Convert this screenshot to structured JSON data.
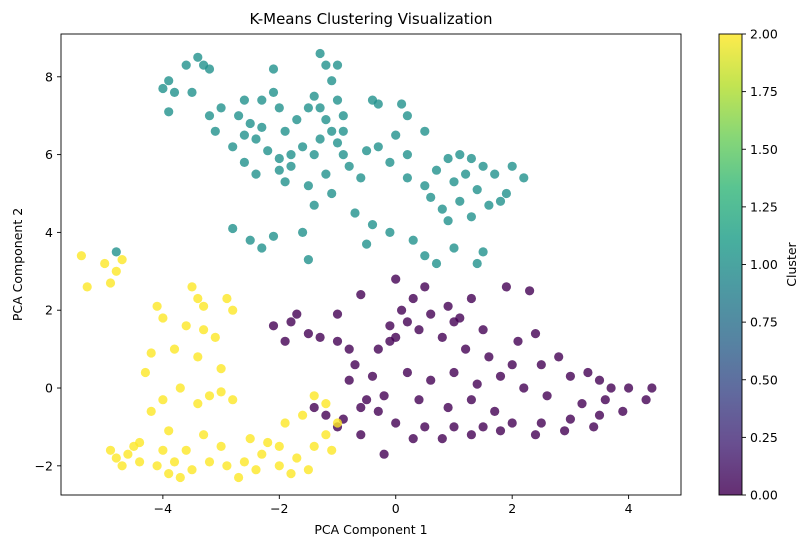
{
  "chart_data": {
    "type": "scatter",
    "title": "K-Means Clustering Visualization",
    "xlabel": "PCA Component 1",
    "ylabel": "PCA Component 2",
    "xlim": [
      -5.75,
      4.9
    ],
    "ylim": [
      -2.75,
      9.1
    ],
    "xticks": [
      -4,
      -2,
      0,
      2,
      4
    ],
    "yticks": [
      -2,
      0,
      2,
      4,
      6,
      8
    ],
    "grid": false,
    "marker_alpha": 0.8,
    "colorbar": {
      "label": "Cluster",
      "range": [
        0.0,
        2.0
      ],
      "ticks": [
        "0.00",
        "0.25",
        "0.50",
        "0.75",
        "1.00",
        "1.25",
        "1.50",
        "1.75",
        "2.00"
      ],
      "colormap": [
        "#440154",
        "#482878",
        "#3e4989",
        "#31688e",
        "#26828e",
        "#1f9e89",
        "#35b779",
        "#6ece58",
        "#b5de2b",
        "#fde725"
      ]
    },
    "series": [
      {
        "cluster": 0,
        "color": "#440154",
        "points": [
          [
            0.0,
            2.8
          ],
          [
            0.5,
            2.6
          ],
          [
            1.3,
            2.3
          ],
          [
            1.9,
            2.6
          ],
          [
            2.3,
            2.5
          ],
          [
            -0.6,
            2.4
          ],
          [
            -1.0,
            1.9
          ],
          [
            -1.7,
            1.9
          ],
          [
            -1.8,
            1.7
          ],
          [
            -1.5,
            1.4
          ],
          [
            -2.1,
            1.6
          ],
          [
            -1.9,
            1.2
          ],
          [
            -1.3,
            1.3
          ],
          [
            -1.0,
            1.2
          ],
          [
            -0.8,
            1.0
          ],
          [
            -0.7,
            0.6
          ],
          [
            -0.3,
            1.0
          ],
          [
            0.0,
            1.3
          ],
          [
            0.4,
            1.5
          ],
          [
            0.8,
            1.3
          ],
          [
            1.2,
            1.0
          ],
          [
            1.6,
            0.8
          ],
          [
            2.0,
            0.6
          ],
          [
            2.5,
            0.6
          ],
          [
            3.0,
            0.3
          ],
          [
            3.5,
            0.2
          ],
          [
            4.0,
            0.0
          ],
          [
            4.4,
            0.0
          ],
          [
            4.3,
            -0.3
          ],
          [
            3.9,
            -0.6
          ],
          [
            3.5,
            -0.7
          ],
          [
            3.0,
            -0.8
          ],
          [
            2.5,
            -0.9
          ],
          [
            2.0,
            -0.9
          ],
          [
            1.5,
            -1.0
          ],
          [
            1.0,
            -1.0
          ],
          [
            0.5,
            -1.0
          ],
          [
            0.0,
            -0.9
          ],
          [
            -0.3,
            -0.6
          ],
          [
            -0.6,
            -0.5
          ],
          [
            -0.6,
            -1.2
          ],
          [
            -1.0,
            -1.0
          ],
          [
            -1.2,
            -0.7
          ],
          [
            -1.4,
            -0.5
          ],
          [
            -0.2,
            -1.7
          ],
          [
            0.3,
            -1.3
          ],
          [
            0.8,
            -1.3
          ],
          [
            1.3,
            -1.2
          ],
          [
            1.8,
            -1.1
          ],
          [
            2.4,
            -1.2
          ],
          [
            2.9,
            -1.1
          ],
          [
            3.4,
            -1.0
          ],
          [
            0.2,
            0.4
          ],
          [
            0.6,
            0.2
          ],
          [
            1.0,
            0.4
          ],
          [
            1.4,
            0.1
          ],
          [
            1.8,
            0.3
          ],
          [
            2.2,
            0.0
          ],
          [
            2.6,
            -0.2
          ],
          [
            0.4,
            -0.3
          ],
          [
            0.9,
            -0.5
          ],
          [
            1.3,
            -0.3
          ],
          [
            1.7,
            -0.6
          ],
          [
            0.1,
            2.0
          ],
          [
            0.6,
            1.9
          ],
          [
            1.0,
            1.7
          ],
          [
            0.3,
            2.3
          ],
          [
            -0.1,
            1.6
          ],
          [
            -0.4,
            0.3
          ],
          [
            -0.2,
            -0.2
          ],
          [
            2.8,
            0.8
          ],
          [
            3.2,
            -0.4
          ],
          [
            3.6,
            -0.3
          ],
          [
            3.7,
            0.0
          ],
          [
            3.3,
            0.4
          ],
          [
            1.1,
            1.8
          ],
          [
            0.9,
            2.1
          ],
          [
            -0.1,
            1.2
          ],
          [
            0.2,
            1.7
          ],
          [
            -0.8,
            0.2
          ],
          [
            -0.5,
            -0.3
          ],
          [
            1.5,
            1.5
          ],
          [
            2.1,
            1.2
          ],
          [
            2.4,
            1.4
          ],
          [
            -0.9,
            -0.8
          ]
        ]
      },
      {
        "cluster": 1,
        "color": "#21918c",
        "points": [
          [
            -3.9,
            7.9
          ],
          [
            -3.6,
            8.3
          ],
          [
            -3.4,
            8.5
          ],
          [
            -3.3,
            8.3
          ],
          [
            -3.2,
            8.2
          ],
          [
            -3.8,
            7.6
          ],
          [
            -3.5,
            7.6
          ],
          [
            -3.0,
            7.2
          ],
          [
            -2.7,
            7.0
          ],
          [
            -2.5,
            6.8
          ],
          [
            -2.3,
            6.7
          ],
          [
            -2.4,
            6.4
          ],
          [
            -2.2,
            6.1
          ],
          [
            -2.0,
            5.9
          ],
          [
            -1.8,
            6.0
          ],
          [
            -1.6,
            6.2
          ],
          [
            -2.6,
            7.4
          ],
          [
            -2.3,
            7.4
          ],
          [
            -2.1,
            8.2
          ],
          [
            -2.1,
            7.6
          ],
          [
            -2.0,
            7.2
          ],
          [
            -1.9,
            6.6
          ],
          [
            -1.7,
            6.9
          ],
          [
            -1.5,
            7.2
          ],
          [
            -1.4,
            7.5
          ],
          [
            -1.3,
            7.2
          ],
          [
            -1.2,
            6.9
          ],
          [
            -1.1,
            6.6
          ],
          [
            -1.0,
            6.3
          ],
          [
            -0.9,
            6.0
          ],
          [
            -0.8,
            5.7
          ],
          [
            -1.3,
            8.6
          ],
          [
            -1.2,
            8.3
          ],
          [
            -1.1,
            7.9
          ],
          [
            -1.0,
            8.3
          ],
          [
            -1.0,
            7.4
          ],
          [
            -0.9,
            7.0
          ],
          [
            -0.9,
            6.6
          ],
          [
            -1.4,
            6.0
          ],
          [
            -1.2,
            5.5
          ],
          [
            -1.5,
            5.2
          ],
          [
            -1.1,
            5.0
          ],
          [
            -0.6,
            5.4
          ],
          [
            -0.4,
            7.4
          ],
          [
            -0.3,
            7.3
          ],
          [
            0.1,
            7.3
          ],
          [
            0.2,
            7.0
          ],
          [
            -0.3,
            6.2
          ],
          [
            -0.1,
            5.8
          ],
          [
            0.2,
            5.4
          ],
          [
            0.5,
            5.2
          ],
          [
            0.7,
            5.6
          ],
          [
            0.9,
            5.9
          ],
          [
            1.1,
            6.0
          ],
          [
            1.3,
            5.9
          ],
          [
            1.5,
            5.7
          ],
          [
            1.7,
            5.5
          ],
          [
            2.0,
            5.7
          ],
          [
            2.2,
            5.4
          ],
          [
            1.9,
            5.0
          ],
          [
            1.6,
            4.7
          ],
          [
            1.3,
            4.4
          ],
          [
            1.1,
            4.8
          ],
          [
            0.8,
            4.6
          ],
          [
            0.6,
            4.9
          ],
          [
            1.4,
            5.1
          ],
          [
            1.2,
            5.5
          ],
          [
            -3.9,
            7.1
          ],
          [
            -3.1,
            6.6
          ],
          [
            -2.8,
            6.2
          ],
          [
            -2.6,
            5.8
          ],
          [
            -2.4,
            5.5
          ],
          [
            -2.0,
            5.6
          ],
          [
            -1.4,
            4.7
          ],
          [
            -0.7,
            4.5
          ],
          [
            -0.4,
            4.2
          ],
          [
            -0.1,
            4.0
          ],
          [
            0.3,
            3.8
          ],
          [
            0.5,
            3.4
          ],
          [
            0.7,
            3.2
          ],
          [
            1.0,
            3.6
          ],
          [
            1.4,
            3.2
          ],
          [
            1.5,
            3.5
          ],
          [
            -1.6,
            4.0
          ],
          [
            -2.1,
            3.9
          ],
          [
            -2.3,
            3.6
          ],
          [
            -2.8,
            4.1
          ],
          [
            -2.5,
            3.8
          ],
          [
            -1.5,
            3.3
          ],
          [
            -0.5,
            3.7
          ],
          [
            -1.9,
            5.3
          ],
          [
            -2.6,
            6.5
          ],
          [
            -1.8,
            5.7
          ],
          [
            -3.2,
            7.0
          ],
          [
            -4.0,
            7.7
          ],
          [
            0.2,
            6.0
          ],
          [
            0.0,
            6.5
          ],
          [
            0.5,
            6.6
          ],
          [
            -0.5,
            6.1
          ],
          [
            1.0,
            5.3
          ],
          [
            1.8,
            4.8
          ],
          [
            0.9,
            4.3
          ],
          [
            -4.8,
            3.5
          ],
          [
            -1.3,
            6.4
          ]
        ]
      },
      {
        "cluster": 2,
        "color": "#fde725",
        "points": [
          [
            -5.4,
            3.4
          ],
          [
            -5.3,
            2.6
          ],
          [
            -5.0,
            3.2
          ],
          [
            -4.8,
            3.0
          ],
          [
            -4.9,
            2.7
          ],
          [
            -4.7,
            3.3
          ],
          [
            -4.0,
            1.8
          ],
          [
            -4.1,
            2.1
          ],
          [
            -4.2,
            0.9
          ],
          [
            -3.8,
            1.0
          ],
          [
            -3.6,
            1.6
          ],
          [
            -3.5,
            2.6
          ],
          [
            -3.4,
            2.3
          ],
          [
            -3.3,
            2.1
          ],
          [
            -3.4,
            0.8
          ],
          [
            -3.3,
            1.5
          ],
          [
            -3.1,
            1.3
          ],
          [
            -2.9,
            2.3
          ],
          [
            -2.8,
            2.0
          ],
          [
            -3.0,
            0.5
          ],
          [
            -3.7,
            0.0
          ],
          [
            -4.3,
            0.4
          ],
          [
            -4.0,
            -0.3
          ],
          [
            -4.2,
            -0.6
          ],
          [
            -3.9,
            -1.1
          ],
          [
            -4.4,
            -1.4
          ],
          [
            -4.8,
            -1.8
          ],
          [
            -4.9,
            -1.6
          ],
          [
            -4.6,
            -1.7
          ],
          [
            -4.4,
            -1.9
          ],
          [
            -4.1,
            -2.0
          ],
          [
            -3.8,
            -1.9
          ],
          [
            -3.5,
            -2.1
          ],
          [
            -3.2,
            -1.9
          ],
          [
            -2.9,
            -2.0
          ],
          [
            -2.6,
            -1.9
          ],
          [
            -2.3,
            -1.7
          ],
          [
            -2.0,
            -2.0
          ],
          [
            -1.7,
            -1.8
          ],
          [
            -1.5,
            -2.1
          ],
          [
            -1.4,
            -1.5
          ],
          [
            -1.2,
            -1.2
          ],
          [
            -1.0,
            -0.9
          ],
          [
            -1.2,
            -0.4
          ],
          [
            -1.4,
            -0.2
          ],
          [
            -1.6,
            -0.7
          ],
          [
            -1.9,
            -0.9
          ],
          [
            -2.2,
            -1.4
          ],
          [
            -2.5,
            -1.3
          ],
          [
            -2.7,
            -2.3
          ],
          [
            -3.4,
            -0.4
          ],
          [
            -3.2,
            -0.2
          ],
          [
            -3.0,
            -0.1
          ],
          [
            -2.8,
            -0.3
          ],
          [
            -4.5,
            -1.5
          ],
          [
            -3.6,
            -1.6
          ],
          [
            -3.0,
            -1.5
          ],
          [
            -2.4,
            -2.1
          ],
          [
            -1.8,
            -2.2
          ],
          [
            -3.9,
            -2.2
          ],
          [
            -4.7,
            -2.0
          ],
          [
            -2.0,
            -1.5
          ],
          [
            -1.1,
            -1.6
          ],
          [
            -3.3,
            -1.2
          ],
          [
            -4.0,
            -1.6
          ],
          [
            -3.7,
            -2.3
          ]
        ]
      }
    ]
  }
}
